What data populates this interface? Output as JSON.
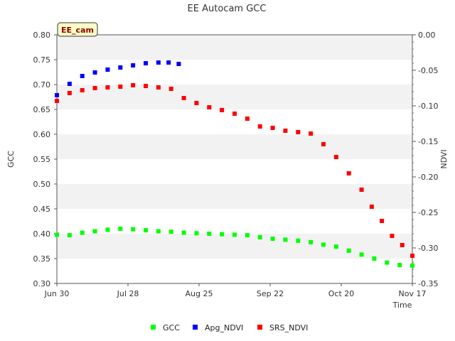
{
  "chart_data": {
    "type": "scatter",
    "title": "EE Autocam GCC",
    "badge": "EE_cam",
    "xlabel": "Time",
    "ylabel": "GCC",
    "y2label": "NDVI",
    "x_ticks": [
      "Jun 30",
      "Jul 28",
      "Aug 25",
      "Sep 22",
      "Oct 20",
      "Nov 17"
    ],
    "x_range_days": [
      0,
      140
    ],
    "ylim": [
      0.3,
      0.8
    ],
    "y_ticks": [
      "0.30",
      "0.35",
      "0.40",
      "0.45",
      "0.50",
      "0.55",
      "0.60",
      "0.65",
      "0.70",
      "0.75",
      "0.80"
    ],
    "y2lim": [
      -0.35,
      0.0
    ],
    "y2_ticks": [
      "-0.35",
      "-0.30",
      "-0.25",
      "-0.20",
      "-0.15",
      "-0.10",
      "-0.05",
      "0.00"
    ],
    "grid": "horizontal alternating bands",
    "legend_position": "bottom",
    "series": [
      {
        "name": "GCC",
        "axis": "left",
        "color": "#00ff00",
        "points": [
          [
            0,
            0.398
          ],
          [
            5,
            0.397
          ],
          [
            10,
            0.402
          ],
          [
            15,
            0.405
          ],
          [
            20,
            0.408
          ],
          [
            25,
            0.41
          ],
          [
            30,
            0.409
          ],
          [
            35,
            0.407
          ],
          [
            40,
            0.405
          ],
          [
            45,
            0.404
          ],
          [
            50,
            0.402
          ],
          [
            55,
            0.401
          ],
          [
            60,
            0.4
          ],
          [
            65,
            0.399
          ],
          [
            70,
            0.398
          ],
          [
            75,
            0.397
          ],
          [
            80,
            0.393
          ],
          [
            85,
            0.39
          ],
          [
            90,
            0.388
          ],
          [
            95,
            0.386
          ],
          [
            100,
            0.383
          ],
          [
            105,
            0.378
          ],
          [
            110,
            0.374
          ],
          [
            115,
            0.366
          ],
          [
            120,
            0.358
          ],
          [
            125,
            0.35
          ],
          [
            130,
            0.342
          ],
          [
            135,
            0.337
          ],
          [
            140,
            0.336
          ]
        ]
      },
      {
        "name": "Apg_NDVI",
        "axis": "right",
        "color": "#0000ff",
        "points": [
          [
            0,
            -0.085
          ],
          [
            5,
            -0.069
          ],
          [
            10,
            -0.058
          ],
          [
            15,
            -0.053
          ],
          [
            20,
            -0.049
          ],
          [
            25,
            -0.046
          ],
          [
            30,
            -0.043
          ],
          [
            35,
            -0.04
          ],
          [
            40,
            -0.039
          ],
          [
            44,
            -0.039
          ],
          [
            48,
            -0.041
          ]
        ]
      },
      {
        "name": "SRS_NDVI",
        "axis": "right",
        "color": "#ff0000",
        "points": [
          [
            0,
            -0.093
          ],
          [
            5,
            -0.082
          ],
          [
            10,
            -0.078
          ],
          [
            15,
            -0.075
          ],
          [
            20,
            -0.074
          ],
          [
            25,
            -0.073
          ],
          [
            30,
            -0.071
          ],
          [
            35,
            -0.072
          ],
          [
            40,
            -0.074
          ],
          [
            45,
            -0.076
          ],
          [
            50,
            -0.089
          ],
          [
            55,
            -0.096
          ],
          [
            60,
            -0.102
          ],
          [
            65,
            -0.106
          ],
          [
            70,
            -0.111
          ],
          [
            75,
            -0.118
          ],
          [
            80,
            -0.129
          ],
          [
            85,
            -0.131
          ],
          [
            90,
            -0.135
          ],
          [
            95,
            -0.137
          ],
          [
            100,
            -0.139
          ],
          [
            105,
            -0.154
          ],
          [
            110,
            -0.172
          ],
          [
            115,
            -0.195
          ],
          [
            120,
            -0.218
          ],
          [
            124,
            -0.242
          ],
          [
            128,
            -0.262
          ],
          [
            132,
            -0.283
          ],
          [
            136,
            -0.296
          ],
          [
            140,
            -0.311
          ]
        ]
      }
    ]
  }
}
